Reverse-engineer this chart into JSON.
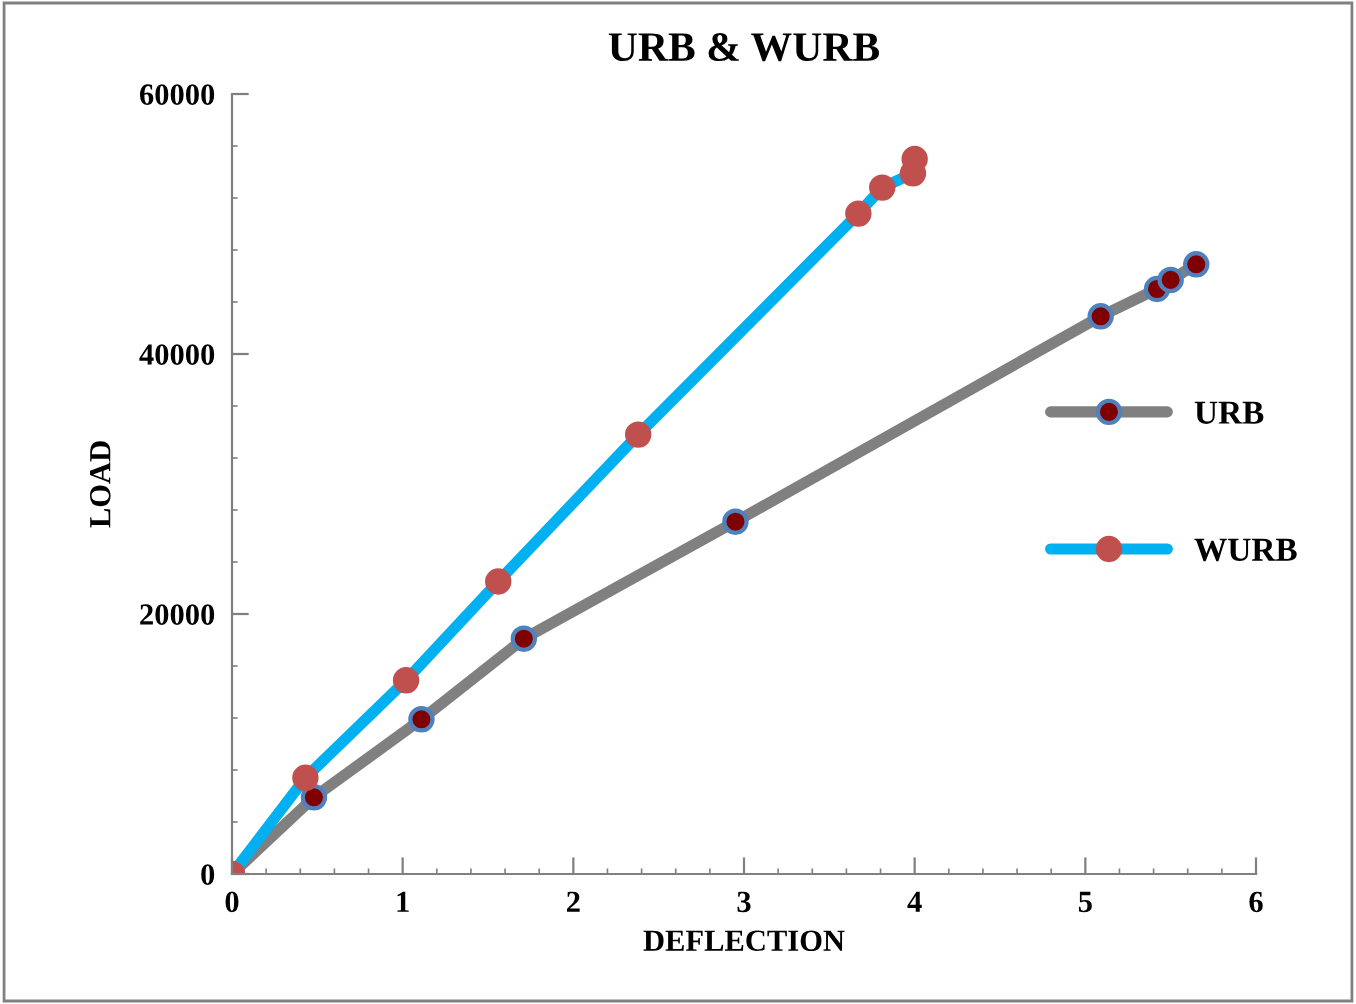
{
  "chart_data": {
    "type": "line",
    "title": "URB & WURB",
    "xlabel": "DEFLECTION",
    "ylabel": "LOAD",
    "series": [
      {
        "name": "URB",
        "color": "#808080",
        "x": [
          0,
          0.48,
          1.11,
          1.71,
          2.95,
          5.09,
          5.42,
          5.5,
          5.65
        ],
        "values": [
          0,
          5900,
          11900,
          18100,
          27100,
          42900,
          45000,
          45700,
          46900
        ]
      },
      {
        "name": "WURB",
        "color": "#00b0f0",
        "x": [
          0,
          0.43,
          1.02,
          1.56,
          2.38,
          3.67,
          3.81,
          3.99,
          4.0
        ],
        "values": [
          0,
          7400,
          14900,
          22500,
          33800,
          50800,
          52800,
          53900,
          55000
        ]
      }
    ],
    "xlim": [
      0,
      6
    ],
    "xticks": [
      0,
      1,
      2,
      3,
      4,
      5,
      6
    ],
    "ylim": [
      0,
      60000
    ],
    "yticks": [
      0,
      20000,
      40000,
      60000
    ],
    "marker": "circle",
    "legend": "right",
    "grid": false
  }
}
